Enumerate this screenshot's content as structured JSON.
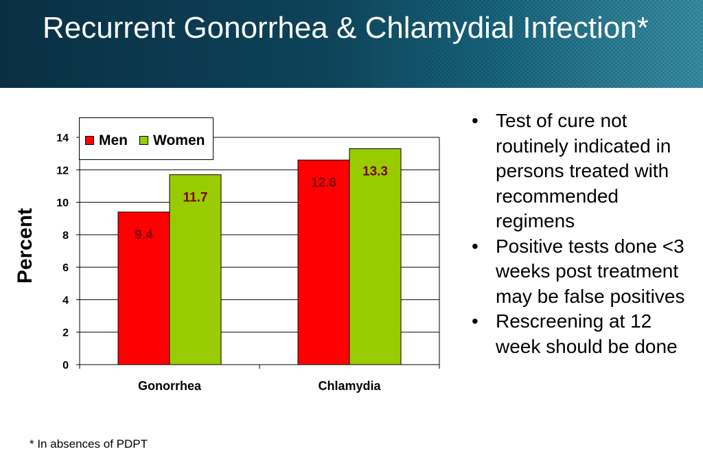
{
  "slide": {
    "title": "Recurrent Gonorrhea & Chlamydial Infection*",
    "footnote": "* In absences of PDPT"
  },
  "bullets": [
    "Test of cure not routinely indicated in persons treated with recommended regimens",
    "Positive tests done <3 weeks post treatment may be false positives",
    "Rescreening at 12 week should be done"
  ],
  "bullet_symbol": "•",
  "colors": {
    "men": "#ff0000",
    "women": "#99cc00",
    "label_text": "#7a0000"
  },
  "chart_data": {
    "type": "bar",
    "title": "",
    "xlabel": "",
    "ylabel": "Percent",
    "categories": [
      "Gonorrhea",
      "Chlamydia"
    ],
    "series": [
      {
        "name": "Men",
        "values": [
          9.4,
          12.6
        ]
      },
      {
        "name": "Women",
        "values": [
          11.7,
          13.3
        ]
      }
    ],
    "ylim": [
      0,
      14
    ],
    "yticks": [
      0,
      2,
      4,
      6,
      8,
      10,
      12,
      14
    ],
    "grid": true,
    "legend": "top-left"
  }
}
